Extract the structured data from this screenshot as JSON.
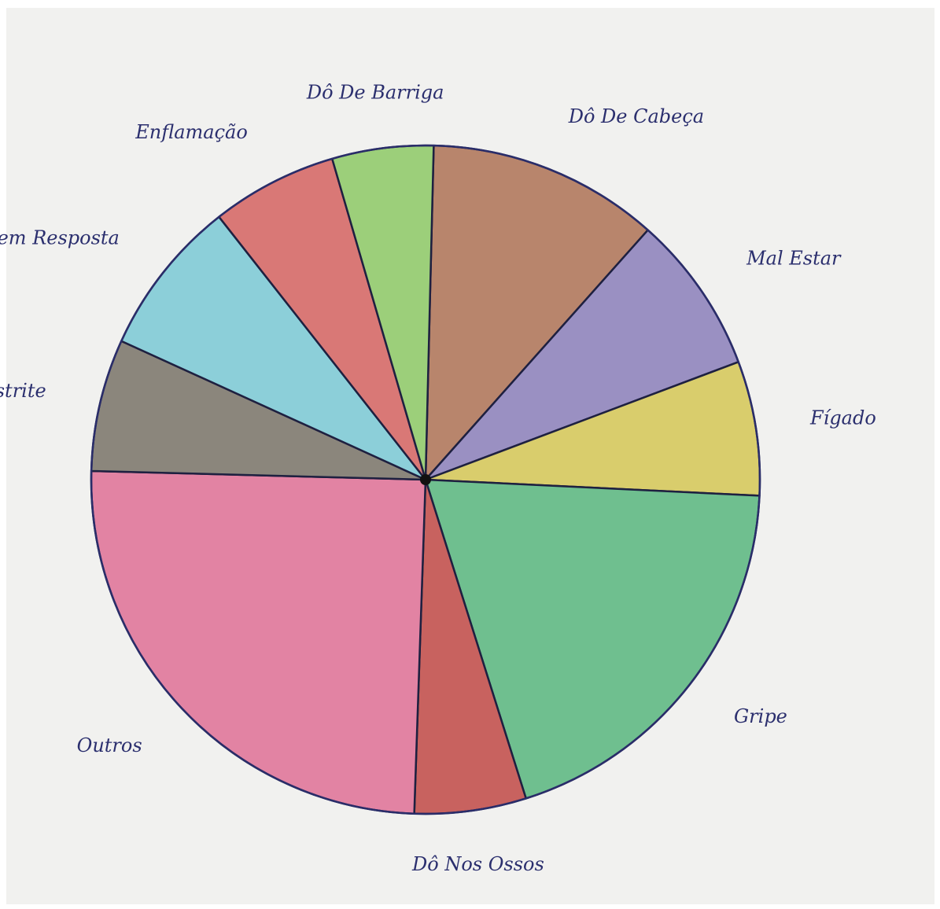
{
  "chart_data": {
    "type": "pie",
    "categories": [
      "Dô De Cabeça",
      "Mal Estar",
      "Fígado",
      "Gripe",
      "Dô Nos Ossos",
      "Outros",
      "Gastrite",
      "Sem Resposta",
      "Enflamação",
      "Dô De Barriga"
    ],
    "values": [
      11.2,
      7.7,
      6.5,
      19.4,
      5.4,
      24.9,
      6.4,
      7.6,
      6.1,
      4.9
    ],
    "colors": [
      "#b8856c",
      "#9a90c2",
      "#d9cd6c",
      "#6fbf8f",
      "#c8625f",
      "#e283a3",
      "#8b867c",
      "#8ccfd9",
      "#d97876",
      "#9ccf7a"
    ]
  }
}
